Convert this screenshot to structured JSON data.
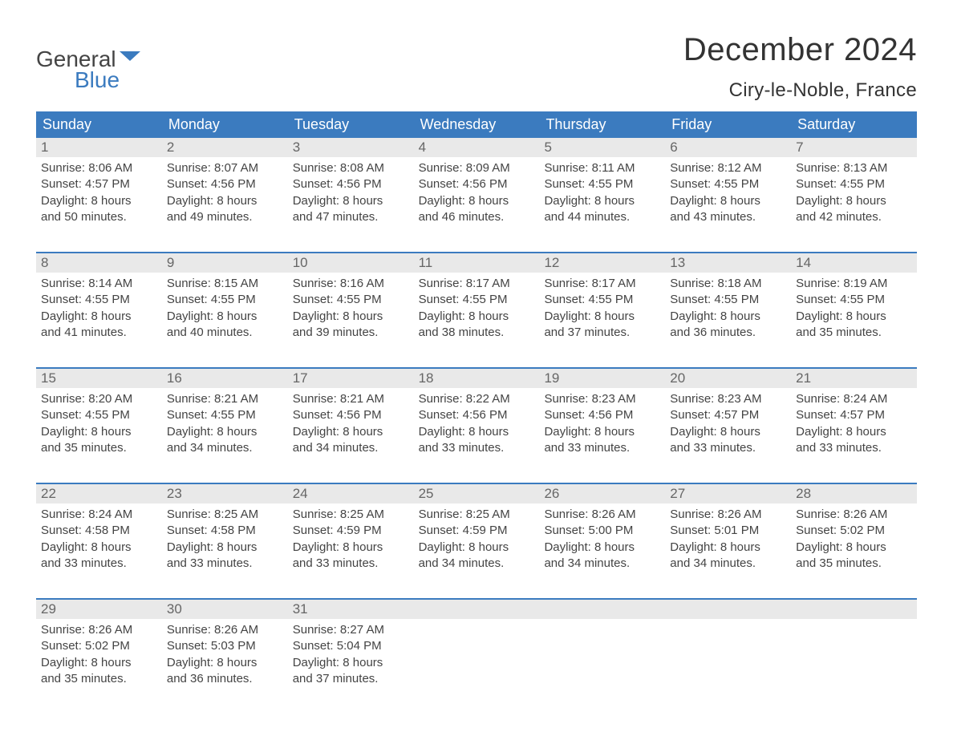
{
  "brand": {
    "top": "General",
    "bottom": "Blue"
  },
  "title": "December 2024",
  "location": "Ciry-le-Noble, France",
  "colors": {
    "header_bg": "#3b7bbf",
    "header_text": "#ffffff",
    "daynum_bg": "#e9e9e9",
    "daynum_text": "#666666",
    "body_text": "#444444",
    "page_bg": "#ffffff"
  },
  "day_names": [
    "Sunday",
    "Monday",
    "Tuesday",
    "Wednesday",
    "Thursday",
    "Friday",
    "Saturday"
  ],
  "weeks": [
    [
      {
        "n": "1",
        "sunrise": "Sunrise: 8:06 AM",
        "sunset": "Sunset: 4:57 PM",
        "dl1": "Daylight: 8 hours",
        "dl2": "and 50 minutes."
      },
      {
        "n": "2",
        "sunrise": "Sunrise: 8:07 AM",
        "sunset": "Sunset: 4:56 PM",
        "dl1": "Daylight: 8 hours",
        "dl2": "and 49 minutes."
      },
      {
        "n": "3",
        "sunrise": "Sunrise: 8:08 AM",
        "sunset": "Sunset: 4:56 PM",
        "dl1": "Daylight: 8 hours",
        "dl2": "and 47 minutes."
      },
      {
        "n": "4",
        "sunrise": "Sunrise: 8:09 AM",
        "sunset": "Sunset: 4:56 PM",
        "dl1": "Daylight: 8 hours",
        "dl2": "and 46 minutes."
      },
      {
        "n": "5",
        "sunrise": "Sunrise: 8:11 AM",
        "sunset": "Sunset: 4:55 PM",
        "dl1": "Daylight: 8 hours",
        "dl2": "and 44 minutes."
      },
      {
        "n": "6",
        "sunrise": "Sunrise: 8:12 AM",
        "sunset": "Sunset: 4:55 PM",
        "dl1": "Daylight: 8 hours",
        "dl2": "and 43 minutes."
      },
      {
        "n": "7",
        "sunrise": "Sunrise: 8:13 AM",
        "sunset": "Sunset: 4:55 PM",
        "dl1": "Daylight: 8 hours",
        "dl2": "and 42 minutes."
      }
    ],
    [
      {
        "n": "8",
        "sunrise": "Sunrise: 8:14 AM",
        "sunset": "Sunset: 4:55 PM",
        "dl1": "Daylight: 8 hours",
        "dl2": "and 41 minutes."
      },
      {
        "n": "9",
        "sunrise": "Sunrise: 8:15 AM",
        "sunset": "Sunset: 4:55 PM",
        "dl1": "Daylight: 8 hours",
        "dl2": "and 40 minutes."
      },
      {
        "n": "10",
        "sunrise": "Sunrise: 8:16 AM",
        "sunset": "Sunset: 4:55 PM",
        "dl1": "Daylight: 8 hours",
        "dl2": "and 39 minutes."
      },
      {
        "n": "11",
        "sunrise": "Sunrise: 8:17 AM",
        "sunset": "Sunset: 4:55 PM",
        "dl1": "Daylight: 8 hours",
        "dl2": "and 38 minutes."
      },
      {
        "n": "12",
        "sunrise": "Sunrise: 8:17 AM",
        "sunset": "Sunset: 4:55 PM",
        "dl1": "Daylight: 8 hours",
        "dl2": "and 37 minutes."
      },
      {
        "n": "13",
        "sunrise": "Sunrise: 8:18 AM",
        "sunset": "Sunset: 4:55 PM",
        "dl1": "Daylight: 8 hours",
        "dl2": "and 36 minutes."
      },
      {
        "n": "14",
        "sunrise": "Sunrise: 8:19 AM",
        "sunset": "Sunset: 4:55 PM",
        "dl1": "Daylight: 8 hours",
        "dl2": "and 35 minutes."
      }
    ],
    [
      {
        "n": "15",
        "sunrise": "Sunrise: 8:20 AM",
        "sunset": "Sunset: 4:55 PM",
        "dl1": "Daylight: 8 hours",
        "dl2": "and 35 minutes."
      },
      {
        "n": "16",
        "sunrise": "Sunrise: 8:21 AM",
        "sunset": "Sunset: 4:55 PM",
        "dl1": "Daylight: 8 hours",
        "dl2": "and 34 minutes."
      },
      {
        "n": "17",
        "sunrise": "Sunrise: 8:21 AM",
        "sunset": "Sunset: 4:56 PM",
        "dl1": "Daylight: 8 hours",
        "dl2": "and 34 minutes."
      },
      {
        "n": "18",
        "sunrise": "Sunrise: 8:22 AM",
        "sunset": "Sunset: 4:56 PM",
        "dl1": "Daylight: 8 hours",
        "dl2": "and 33 minutes."
      },
      {
        "n": "19",
        "sunrise": "Sunrise: 8:23 AM",
        "sunset": "Sunset: 4:56 PM",
        "dl1": "Daylight: 8 hours",
        "dl2": "and 33 minutes."
      },
      {
        "n": "20",
        "sunrise": "Sunrise: 8:23 AM",
        "sunset": "Sunset: 4:57 PM",
        "dl1": "Daylight: 8 hours",
        "dl2": "and 33 minutes."
      },
      {
        "n": "21",
        "sunrise": "Sunrise: 8:24 AM",
        "sunset": "Sunset: 4:57 PM",
        "dl1": "Daylight: 8 hours",
        "dl2": "and 33 minutes."
      }
    ],
    [
      {
        "n": "22",
        "sunrise": "Sunrise: 8:24 AM",
        "sunset": "Sunset: 4:58 PM",
        "dl1": "Daylight: 8 hours",
        "dl2": "and 33 minutes."
      },
      {
        "n": "23",
        "sunrise": "Sunrise: 8:25 AM",
        "sunset": "Sunset: 4:58 PM",
        "dl1": "Daylight: 8 hours",
        "dl2": "and 33 minutes."
      },
      {
        "n": "24",
        "sunrise": "Sunrise: 8:25 AM",
        "sunset": "Sunset: 4:59 PM",
        "dl1": "Daylight: 8 hours",
        "dl2": "and 33 minutes."
      },
      {
        "n": "25",
        "sunrise": "Sunrise: 8:25 AM",
        "sunset": "Sunset: 4:59 PM",
        "dl1": "Daylight: 8 hours",
        "dl2": "and 34 minutes."
      },
      {
        "n": "26",
        "sunrise": "Sunrise: 8:26 AM",
        "sunset": "Sunset: 5:00 PM",
        "dl1": "Daylight: 8 hours",
        "dl2": "and 34 minutes."
      },
      {
        "n": "27",
        "sunrise": "Sunrise: 8:26 AM",
        "sunset": "Sunset: 5:01 PM",
        "dl1": "Daylight: 8 hours",
        "dl2": "and 34 minutes."
      },
      {
        "n": "28",
        "sunrise": "Sunrise: 8:26 AM",
        "sunset": "Sunset: 5:02 PM",
        "dl1": "Daylight: 8 hours",
        "dl2": "and 35 minutes."
      }
    ],
    [
      {
        "n": "29",
        "sunrise": "Sunrise: 8:26 AM",
        "sunset": "Sunset: 5:02 PM",
        "dl1": "Daylight: 8 hours",
        "dl2": "and 35 minutes."
      },
      {
        "n": "30",
        "sunrise": "Sunrise: 8:26 AM",
        "sunset": "Sunset: 5:03 PM",
        "dl1": "Daylight: 8 hours",
        "dl2": "and 36 minutes."
      },
      {
        "n": "31",
        "sunrise": "Sunrise: 8:27 AM",
        "sunset": "Sunset: 5:04 PM",
        "dl1": "Daylight: 8 hours",
        "dl2": "and 37 minutes."
      },
      {
        "empty": true
      },
      {
        "empty": true
      },
      {
        "empty": true
      },
      {
        "empty": true
      }
    ]
  ]
}
